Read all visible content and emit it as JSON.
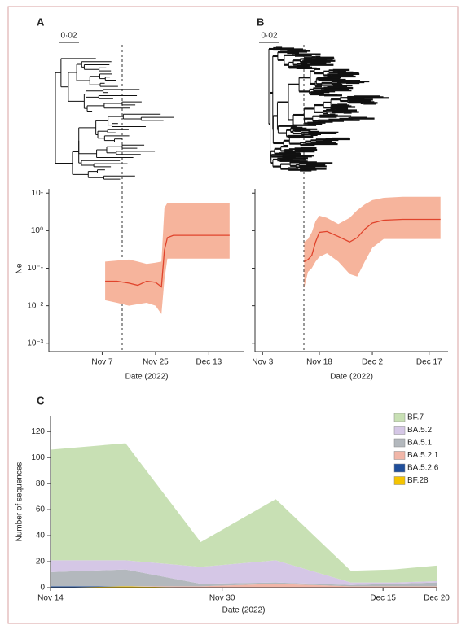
{
  "chart_data": [
    {
      "type": "line",
      "panel": "A",
      "tree_scale": "0·02",
      "ylabel": "Ne",
      "xlabel": "Date (2022)",
      "log_y": true,
      "x": [
        "Nov 8",
        "Nov 12",
        "Nov 16",
        "Nov 19",
        "Nov 22",
        "Nov 25",
        "Nov 27",
        "Nov 28",
        "Nov 29",
        "Dec 1",
        "Dec 5",
        "Dec 10",
        "Dec 20"
      ],
      "values": [
        0.045,
        0.045,
        0.04,
        0.035,
        0.045,
        0.042,
        0.032,
        0.3,
        0.65,
        0.75,
        0.75,
        0.75,
        0.75
      ],
      "lower": [
        0.014,
        0.012,
        0.01,
        0.011,
        0.012,
        0.01,
        0.006,
        0.05,
        0.18,
        0.18,
        0.18,
        0.18,
        0.18
      ],
      "upper": [
        0.15,
        0.16,
        0.17,
        0.15,
        0.13,
        0.14,
        0.15,
        4,
        5.5,
        5.5,
        5.5,
        5.5,
        5.5
      ],
      "color": "#e0442c",
      "band_color": "#f6b49c",
      "xlim": [
        "Oct 20",
        "Dec 25"
      ],
      "xticks": [
        "Nov 7",
        "Nov 25",
        "Dec 13"
      ],
      "ylim": [
        0.0006,
        13
      ],
      "yticks": [
        {
          "value": 10,
          "label": "10¹"
        },
        {
          "value": 1,
          "label": "10⁰"
        },
        {
          "value": 0.1,
          "label": "10⁻¹"
        },
        {
          "value": 0.01,
          "label": "10⁻²"
        },
        {
          "value": 0.001,
          "label": "10⁻³"
        }
      ]
    },
    {
      "type": "line",
      "panel": "B",
      "tree_scale": "0·02",
      "xlabel": "Date (2022)",
      "log_y": true,
      "x": [
        "Nov 14",
        "Nov 15",
        "Nov 16",
        "Nov 17",
        "Nov 18",
        "Nov 20",
        "Nov 23",
        "Nov 26",
        "Nov 28",
        "Nov 30",
        "Dec 2",
        "Dec 5",
        "Dec 10",
        "Dec 20"
      ],
      "values": [
        0.15,
        0.17,
        0.22,
        0.5,
        0.9,
        0.95,
        0.7,
        0.5,
        0.65,
        1.1,
        1.6,
        1.9,
        2,
        2
      ],
      "lower": [
        0.03,
        0.08,
        0.1,
        0.15,
        0.2,
        0.25,
        0.15,
        0.07,
        0.06,
        0.15,
        0.35,
        0.6,
        0.6,
        0.6
      ],
      "upper": [
        0.5,
        0.6,
        0.9,
        1.8,
        2.5,
        2.2,
        1.5,
        2.2,
        3.5,
        5,
        6.5,
        7.5,
        8,
        8
      ],
      "color": "#e0442c",
      "band_color": "#f6b49c",
      "xlim": [
        "Nov 1",
        "Dec 22"
      ],
      "xticks": [
        "Nov 3",
        "Nov 18",
        "Dec 2",
        "Dec 17"
      ],
      "ylim": [
        0.0006,
        13
      ],
      "yticks": [
        10,
        1,
        0.1,
        0.01,
        0.001
      ]
    },
    {
      "type": "area",
      "panel": "C",
      "stacked": true,
      "xlabel": "Date (2022)",
      "ylabel": "Number of sequences",
      "x": [
        "Nov 14",
        "Nov 21",
        "Nov 28",
        "Dec 5",
        "Dec 12",
        "Dec 16",
        "Dec 20"
      ],
      "series": [
        {
          "name": "BF.7",
          "color": "#c8e0b4",
          "values": [
            85,
            90,
            19,
            47,
            9,
            10,
            12
          ]
        },
        {
          "name": "BA.5.2",
          "color": "#d5c7e6",
          "values": [
            9,
            7,
            13,
            17,
            2,
            1,
            1
          ]
        },
        {
          "name": "BA.5.1",
          "color": "#b3b8bd",
          "values": [
            11,
            13,
            2,
            1,
            1,
            2,
            3
          ]
        },
        {
          "name": "BA.5.2.1",
          "color": "#f1b6a8",
          "values": [
            0,
            0,
            1,
            3,
            1,
            1,
            1
          ]
        },
        {
          "name": "BA.5.2.6",
          "color": "#1f4e9a",
          "values": [
            1,
            0,
            0,
            0,
            0,
            0,
            0
          ]
        },
        {
          "name": "BF.28",
          "color": "#f5c400",
          "values": [
            0,
            1,
            0,
            0,
            0,
            0,
            0
          ]
        }
      ],
      "xlim": [
        "Nov 14",
        "Dec 20"
      ],
      "xticks": [
        "Nov 14",
        "Nov 30",
        "Dec 15",
        "Dec 20"
      ],
      "ylim": [
        0,
        132
      ],
      "yticks": [
        0,
        20,
        40,
        60,
        80,
        100,
        120
      ],
      "legend": "top-right"
    }
  ]
}
